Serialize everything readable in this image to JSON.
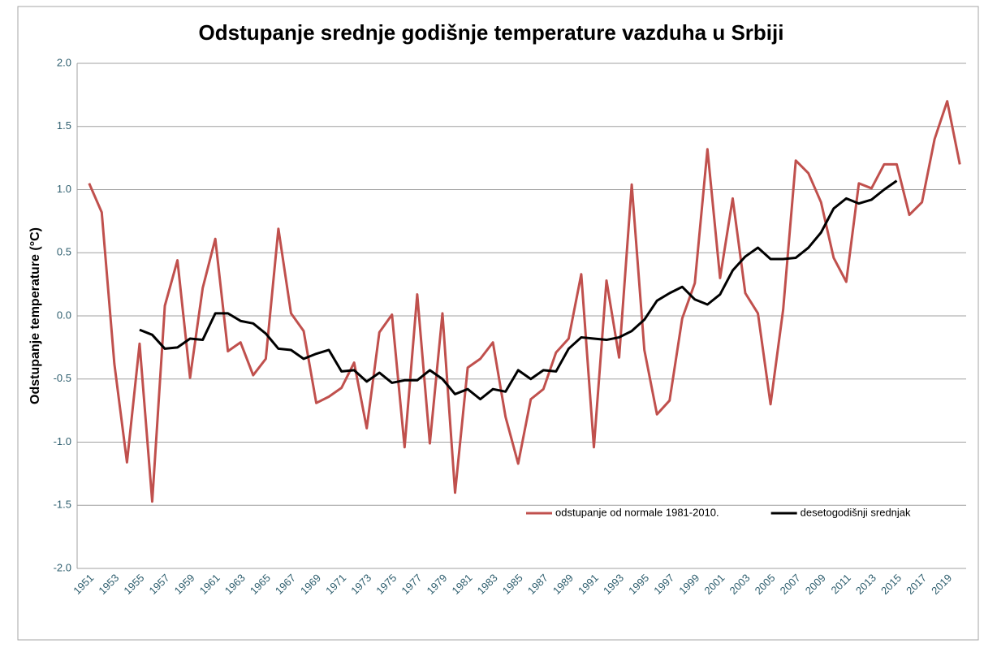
{
  "chart_data": {
    "type": "line",
    "title": "Odstupanje srednje godišnje temperature vazduha u Srbiji",
    "y_label": "Odstupanje temperature (°C)",
    "categories": [
      "1951",
      null,
      "1953",
      null,
      "1955",
      null,
      "1957",
      null,
      "1959",
      null,
      "1961",
      null,
      "1963",
      null,
      "1965",
      null,
      "1967",
      null,
      "1969",
      null,
      "1971",
      null,
      "1973",
      null,
      "1975",
      null,
      "1977",
      null,
      "1979",
      null,
      "1981",
      null,
      "1983",
      null,
      "1985",
      null,
      "1987",
      null,
      "1989",
      null,
      "1991",
      null,
      "1993",
      null,
      "1995",
      null,
      "1997",
      null,
      "1999",
      null,
      "2001",
      null,
      "2003",
      null,
      "2005",
      null,
      "2007",
      null,
      "2009",
      null,
      "2011",
      null,
      "2013",
      null,
      "2015",
      null,
      "2017",
      null,
      "2019",
      null
    ],
    "series": [
      {
        "name": "odstupanje od normale 1981-2010.",
        "color": "#c0504d",
        "values": [
          1.05,
          0.82,
          -0.38,
          -1.16,
          -0.22,
          -1.47,
          0.08,
          0.44,
          -0.49,
          0.22,
          0.61,
          -0.28,
          -0.21,
          -0.47,
          -0.34,
          0.69,
          0.02,
          -0.12,
          -0.69,
          -0.64,
          -0.57,
          -0.37,
          -0.89,
          -0.13,
          0.01,
          -1.04,
          0.17,
          -1.01,
          0.02,
          -1.4,
          -0.41,
          -0.34,
          -0.21,
          -0.8,
          -1.17,
          -0.66,
          -0.58,
          -0.29,
          -0.18,
          0.33,
          -1.04,
          0.28,
          -0.33,
          1.04,
          -0.27,
          -0.78,
          -0.67,
          -0.02,
          0.26,
          1.32,
          0.3,
          0.93,
          0.18,
          0.02,
          -0.7,
          0.05,
          1.23,
          1.13,
          0.9,
          0.46,
          0.27,
          1.05,
          1.01,
          1.2,
          1.2,
          0.8,
          0.9,
          1.4,
          1.7,
          1.2
        ]
      },
      {
        "name": "desetogodišnji srednjak",
        "color": "#000000",
        "values": [
          null,
          null,
          null,
          null,
          -0.11,
          -0.15,
          -0.26,
          -0.25,
          -0.18,
          -0.19,
          0.02,
          0.02,
          -0.04,
          -0.06,
          -0.14,
          -0.26,
          -0.27,
          -0.34,
          -0.3,
          -0.27,
          -0.44,
          -0.43,
          -0.52,
          -0.45,
          -0.53,
          -0.51,
          -0.51,
          -0.43,
          -0.5,
          -0.62,
          -0.58,
          -0.66,
          -0.58,
          -0.6,
          -0.43,
          -0.5,
          -0.43,
          -0.44,
          -0.26,
          -0.17,
          -0.18,
          -0.19,
          -0.17,
          -0.12,
          -0.03,
          0.12,
          0.18,
          0.23,
          0.13,
          0.09,
          0.17,
          0.36,
          0.47,
          0.54,
          0.45,
          0.45,
          0.46,
          0.54,
          0.66,
          0.85,
          0.93,
          0.89,
          0.92,
          1.0,
          1.07,
          null,
          null,
          null,
          null,
          null
        ]
      }
    ],
    "ylim": [
      -2,
      2
    ],
    "yticks": [
      {
        "value": 2,
        "label": "2.0"
      },
      1.5,
      {
        "value": 1,
        "label": "1.0"
      },
      0.5,
      {
        "value": 0,
        "label": "0.0"
      },
      -0.5,
      {
        "value": -1,
        "label": "-1.0"
      },
      -1.5,
      {
        "value": -2,
        "label": "-2.0"
      }
    ],
    "grid": true,
    "legend": "lower right"
  }
}
